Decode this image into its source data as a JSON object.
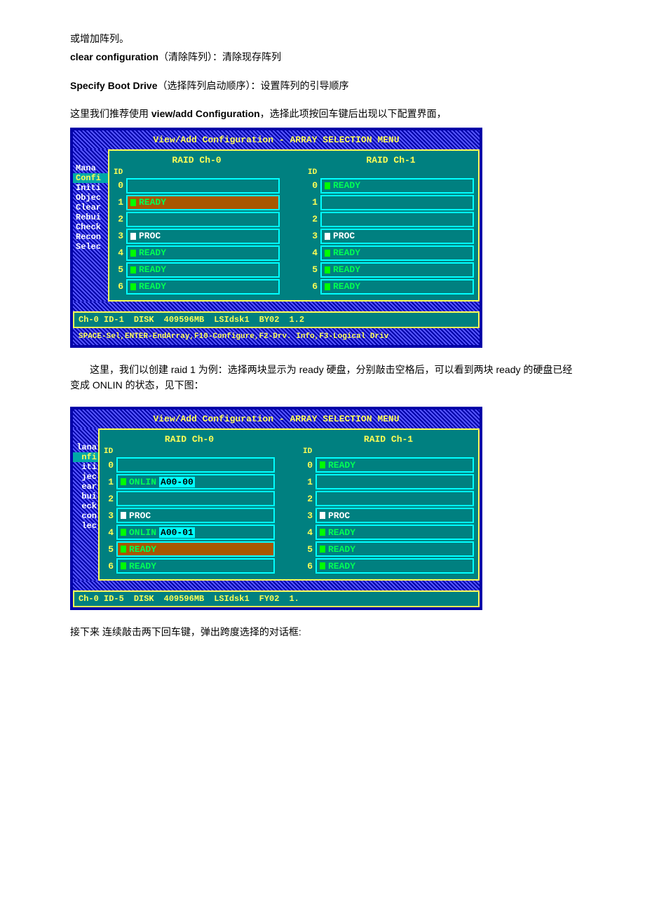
{
  "doc": {
    "line1": "或增加阵列。",
    "line2a": "clear configuration",
    "line2b": "（清除阵列）：清除现存阵列",
    "line3a": "Specify Boot Drive",
    "line3b": "（选择阵列启动顺序）：设置阵列的引导顺序",
    "line4a": "这里我们推荐使用 ",
    "line4b": "view/add Configuration",
    "line4c": "，选择此项按回车键后出现以下配置界面，",
    "line5": "　　这里，我们以创建 raid 1 为例：选择两块显示为 ready  硬盘，分别敲击空格后，可以看到两块 ready 的硬盘已经变成 ONLIN  的状态，见下图：",
    "line6": "接下来 连续敲击两下回车键，弹出跨度选择的对话框:"
  },
  "bios1": {
    "title": "View/Add Configuration - ARRAY SELECTION MENU",
    "sidebar": [
      "Mana",
      "Confi",
      "Initi",
      "Objec",
      "Clear",
      "Rebui",
      "Check",
      "Recon",
      "Selec"
    ],
    "ch0_label": "RAID Ch-0",
    "ch1_label": "RAID Ch-1",
    "id_label": "ID",
    "ch0": [
      {
        "id": "0",
        "led": "",
        "text": "",
        "cls": ""
      },
      {
        "id": "1",
        "led": "g",
        "text": "READY",
        "cls": "st-ready hl-bar"
      },
      {
        "id": "2",
        "led": "",
        "text": "",
        "cls": ""
      },
      {
        "id": "3",
        "led": "w",
        "text": "PROC",
        "cls": "st-proc"
      },
      {
        "id": "4",
        "led": "g",
        "text": "READY",
        "cls": "st-ready"
      },
      {
        "id": "5",
        "led": "g",
        "text": "READY",
        "cls": "st-ready"
      },
      {
        "id": "6",
        "led": "g",
        "text": "READY",
        "cls": "st-ready"
      }
    ],
    "ch1": [
      {
        "id": "0",
        "led": "g",
        "text": "READY",
        "cls": "st-ready"
      },
      {
        "id": "1",
        "led": "",
        "text": "",
        "cls": ""
      },
      {
        "id": "2",
        "led": "",
        "text": "",
        "cls": ""
      },
      {
        "id": "3",
        "led": "w",
        "text": "PROC",
        "cls": "st-proc"
      },
      {
        "id": "4",
        "led": "g",
        "text": "READY",
        "cls": "st-ready"
      },
      {
        "id": "5",
        "led": "g",
        "text": "READY",
        "cls": "st-ready"
      },
      {
        "id": "6",
        "led": "g",
        "text": "READY",
        "cls": "st-ready"
      }
    ],
    "status": [
      "Ch-0 ID-1",
      "DISK",
      "409596MB",
      "LSIdsk1",
      "BY02",
      "1.2"
    ],
    "footer": "SPACE-Sel,ENTER-EndArray,F10-Configure,F2-Drv.  Info,F3-Logical Driv"
  },
  "bios2": {
    "title": "View/Add Configuration - ARRAY SELECTION MENU",
    "sidebar": [
      "lana",
      "nfi",
      "iti",
      "jec",
      "ear",
      "bui",
      "eck",
      "con",
      "lec"
    ],
    "ch0_label": "RAID Ch-0",
    "ch1_label": "RAID Ch-1",
    "id_label": "ID",
    "ch0": [
      {
        "id": "0",
        "led": "",
        "text": "",
        "extra": "",
        "cls": ""
      },
      {
        "id": "1",
        "led": "g",
        "text": "ONLIN",
        "extra": "A00-00",
        "cls": "st-onlin"
      },
      {
        "id": "2",
        "led": "",
        "text": "",
        "extra": "",
        "cls": ""
      },
      {
        "id": "3",
        "led": "w",
        "text": "PROC",
        "extra": "",
        "cls": "st-proc"
      },
      {
        "id": "4",
        "led": "g",
        "text": "ONLIN",
        "extra": "A00-01",
        "cls": "st-onlin"
      },
      {
        "id": "5",
        "led": "g",
        "text": "READY",
        "extra": "",
        "cls": "st-ready hl-bar"
      },
      {
        "id": "6",
        "led": "g",
        "text": "READY",
        "extra": "",
        "cls": "st-ready"
      }
    ],
    "ch1": [
      {
        "id": "0",
        "led": "g",
        "text": "READY",
        "cls": "st-ready"
      },
      {
        "id": "1",
        "led": "",
        "text": "",
        "cls": ""
      },
      {
        "id": "2",
        "led": "",
        "text": "",
        "cls": ""
      },
      {
        "id": "3",
        "led": "w",
        "text": "PROC",
        "cls": "st-proc"
      },
      {
        "id": "4",
        "led": "g",
        "text": "READY",
        "cls": "st-ready"
      },
      {
        "id": "5",
        "led": "g",
        "text": "READY",
        "cls": "st-ready"
      },
      {
        "id": "6",
        "led": "g",
        "text": "READY",
        "cls": "st-ready"
      }
    ],
    "status": [
      "Ch-0 ID-5",
      "DISK",
      "409596MB",
      "LSIdsk1",
      "FY02",
      "1."
    ]
  }
}
